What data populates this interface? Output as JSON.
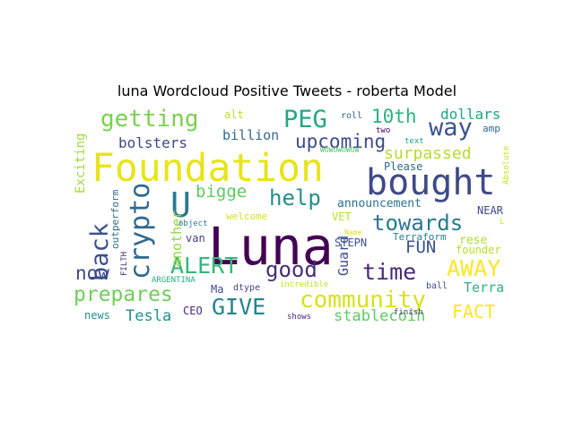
{
  "title": "luna Wordcloud Positive Tweets - roberta Model",
  "chart_data": {
    "type": "wordcloud",
    "title": "luna Wordcloud Positive Tweets - roberta Model",
    "words": [
      {
        "text": "Luna",
        "color": "#440154"
      },
      {
        "text": "Foundation",
        "color": "#e8e419"
      },
      {
        "text": "bought",
        "color": "#3e4a89"
      },
      {
        "text": "crypto",
        "color": "#31688e"
      },
      {
        "text": "back",
        "color": "#3b528b"
      },
      {
        "text": "getting",
        "color": "#7ad151"
      },
      {
        "text": "PEG",
        "color": "#22a884"
      },
      {
        "text": "way",
        "color": "#3b528b"
      },
      {
        "text": "U",
        "color": "#2a788e"
      },
      {
        "text": "community",
        "color": "#d8e219"
      },
      {
        "text": "GIVE",
        "color": "#26828e"
      },
      {
        "text": "AWAY",
        "color": "#fde725"
      },
      {
        "text": "time",
        "color": "#482878"
      },
      {
        "text": "good",
        "color": "#472d7b"
      },
      {
        "text": "ALERT",
        "color": "#35b779"
      },
      {
        "text": "towards",
        "color": "#2a788e"
      },
      {
        "text": "help",
        "color": "#21918c"
      },
      {
        "text": "upcoming",
        "color": "#3e4a89"
      },
      {
        "text": "prepares",
        "color": "#6ece58"
      },
      {
        "text": "now",
        "color": "#3e4a89"
      },
      {
        "text": "10th",
        "color": "#2db27d"
      },
      {
        "text": "FACT",
        "color": "#fde725"
      },
      {
        "text": "bigge",
        "color": "#5ec962"
      },
      {
        "text": "FUN",
        "color": "#3b528b"
      },
      {
        "text": "surpassed",
        "color": "#b5de2b"
      },
      {
        "text": "stablecoin",
        "color": "#5ec962"
      },
      {
        "text": "Tesla",
        "color": "#21918c"
      },
      {
        "text": "dollars",
        "color": "#20a486"
      },
      {
        "text": "bolsters",
        "color": "#3e4a89"
      },
      {
        "text": "billion",
        "color": "#31688e"
      },
      {
        "text": "Terra",
        "color": "#2db27d"
      },
      {
        "text": "Guard",
        "color": "#3e4a89"
      },
      {
        "text": "another",
        "color": "#8fd744"
      },
      {
        "text": "Exciting",
        "color": "#a0da39"
      },
      {
        "text": "announcement",
        "color": "#2c728e"
      },
      {
        "text": "Terraform",
        "color": "#277f8e"
      },
      {
        "text": "rese",
        "color": "#addc30"
      },
      {
        "text": "founder",
        "color": "#b5de2b"
      },
      {
        "text": "Please",
        "color": "#31688e"
      },
      {
        "text": "STEPN",
        "color": "#3b528b"
      },
      {
        "text": "NEAR",
        "color": "#3e4a89"
      },
      {
        "text": "VET",
        "color": "#b5de2b"
      },
      {
        "text": "welcome",
        "color": "#d8e219"
      },
      {
        "text": "van",
        "color": "#414487"
      },
      {
        "text": "alt",
        "color": "#bddf26"
      },
      {
        "text": "amp",
        "color": "#31688e"
      },
      {
        "text": "news",
        "color": "#21918c"
      },
      {
        "text": "CEO",
        "color": "#482878"
      },
      {
        "text": "Ma",
        "color": "#3e4a89"
      },
      {
        "text": "dtype",
        "color": "#414487"
      },
      {
        "text": "outperform",
        "color": "#31688e"
      },
      {
        "text": "FILTH",
        "color": "#46327e"
      },
      {
        "text": "ARGENTINA",
        "color": "#27ad81"
      },
      {
        "text": "object",
        "color": "#2a788e"
      },
      {
        "text": "incredible",
        "color": "#c2df23"
      },
      {
        "text": "Name",
        "color": "#d8e219"
      },
      {
        "text": "finish",
        "color": "#443983"
      },
      {
        "text": "ball",
        "color": "#3e4a89"
      },
      {
        "text": "shows",
        "color": "#482878"
      },
      {
        "text": "roll",
        "color": "#31688e"
      },
      {
        "text": "two",
        "color": "#440154"
      },
      {
        "text": "text",
        "color": "#1fa187"
      },
      {
        "text": "WOWOWOWOW",
        "color": "#4ac16d"
      },
      {
        "text": "Absolute",
        "color": "#cde11d"
      },
      {
        "text": "L",
        "color": "#d8e219"
      }
    ]
  }
}
